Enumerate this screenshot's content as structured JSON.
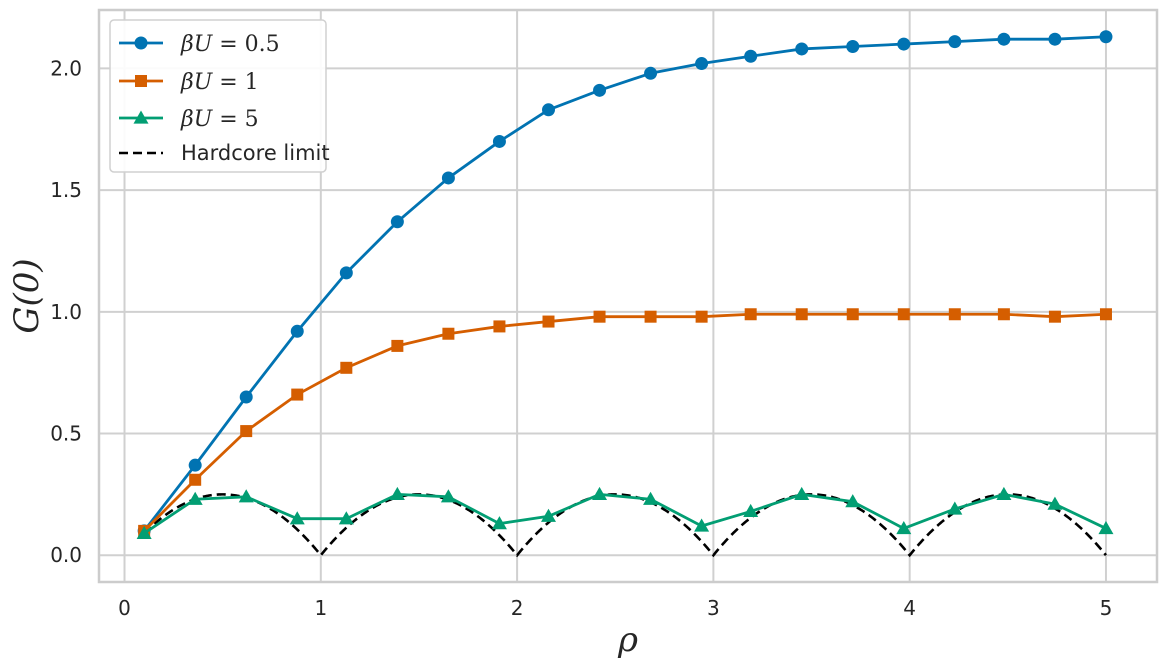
{
  "chart_data": {
    "type": "line",
    "xlabel": "ρ",
    "ylabel": "G(0)",
    "xlim": [
      -0.13,
      5.26
    ],
    "ylim": [
      -0.11,
      2.24
    ],
    "xticks": [
      0,
      1,
      2,
      3,
      4,
      5
    ],
    "xtick_labels": [
      "0",
      "1",
      "2",
      "3",
      "4",
      "5"
    ],
    "yticks": [
      0.0,
      0.5,
      1.0,
      1.5,
      2.0
    ],
    "ytick_labels": [
      "0.0",
      "0.5",
      "1.0",
      "1.5",
      "2.0"
    ],
    "grid": true,
    "legend_position": "top-left",
    "x": [
      0.1,
      0.36,
      0.62,
      0.88,
      1.13,
      1.39,
      1.65,
      1.91,
      2.16,
      2.42,
      2.68,
      2.94,
      3.19,
      3.45,
      3.71,
      3.97,
      4.23,
      4.48,
      4.74,
      5.0
    ],
    "series": [
      {
        "name": "βU = 0.5",
        "name_parts": [
          "β",
          "U",
          " = 0.5"
        ],
        "marker": "circle",
        "color": "#0173b2",
        "values": [
          0.1,
          0.37,
          0.65,
          0.92,
          1.16,
          1.37,
          1.55,
          1.7,
          1.83,
          1.91,
          1.98,
          2.02,
          2.05,
          2.08,
          2.09,
          2.1,
          2.11,
          2.12,
          2.12,
          2.13
        ]
      },
      {
        "name": "βU = 1",
        "name_parts": [
          "β",
          "U",
          " = 1"
        ],
        "marker": "square",
        "color": "#d55e00",
        "values": [
          0.1,
          0.31,
          0.51,
          0.66,
          0.77,
          0.86,
          0.91,
          0.94,
          0.96,
          0.98,
          0.98,
          0.98,
          0.99,
          0.99,
          0.99,
          0.99,
          0.99,
          0.99,
          0.98,
          0.99
        ]
      },
      {
        "name": "βU = 5",
        "name_parts": [
          "β",
          "U",
          " = 5"
        ],
        "marker": "triangle",
        "color": "#029e73",
        "values": [
          0.09,
          0.23,
          0.24,
          0.15,
          0.15,
          0.25,
          0.24,
          0.13,
          0.16,
          0.25,
          0.23,
          0.12,
          0.18,
          0.25,
          0.22,
          0.11,
          0.19,
          0.25,
          0.21,
          0.11
        ]
      }
    ],
    "reference": {
      "name": "Hardcore limit",
      "style": "dashed",
      "color": "#000000",
      "formula": "f(1 - f), f = fractional part of ρ",
      "x_range": [
        0.1,
        5.0
      ]
    }
  }
}
